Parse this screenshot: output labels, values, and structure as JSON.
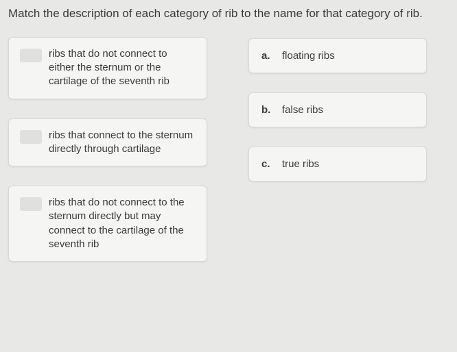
{
  "prompt": "Match the description of each category of rib to the name for that category of rib.",
  "descriptions": [
    {
      "text": "ribs that do not connect to either the sternum or the cartilage of the seventh rib"
    },
    {
      "text": "ribs that connect to the sternum directly through cartilage"
    },
    {
      "text": "ribs that do not connect to the sternum directly but may connect to the cartilage of the seventh rib"
    }
  ],
  "answers": [
    {
      "letter": "a.",
      "text": "floating ribs"
    },
    {
      "letter": "b.",
      "text": "false ribs"
    },
    {
      "letter": "c.",
      "text": "true ribs"
    }
  ],
  "colors": {
    "background": "#e8e8e6",
    "card_bg": "#f5f5f3",
    "card_border": "#d8d8d6",
    "text": "#3a3a3a",
    "slot_bg": "#e0e0de"
  },
  "typography": {
    "prompt_fontsize": 17,
    "body_fontsize": 15
  }
}
